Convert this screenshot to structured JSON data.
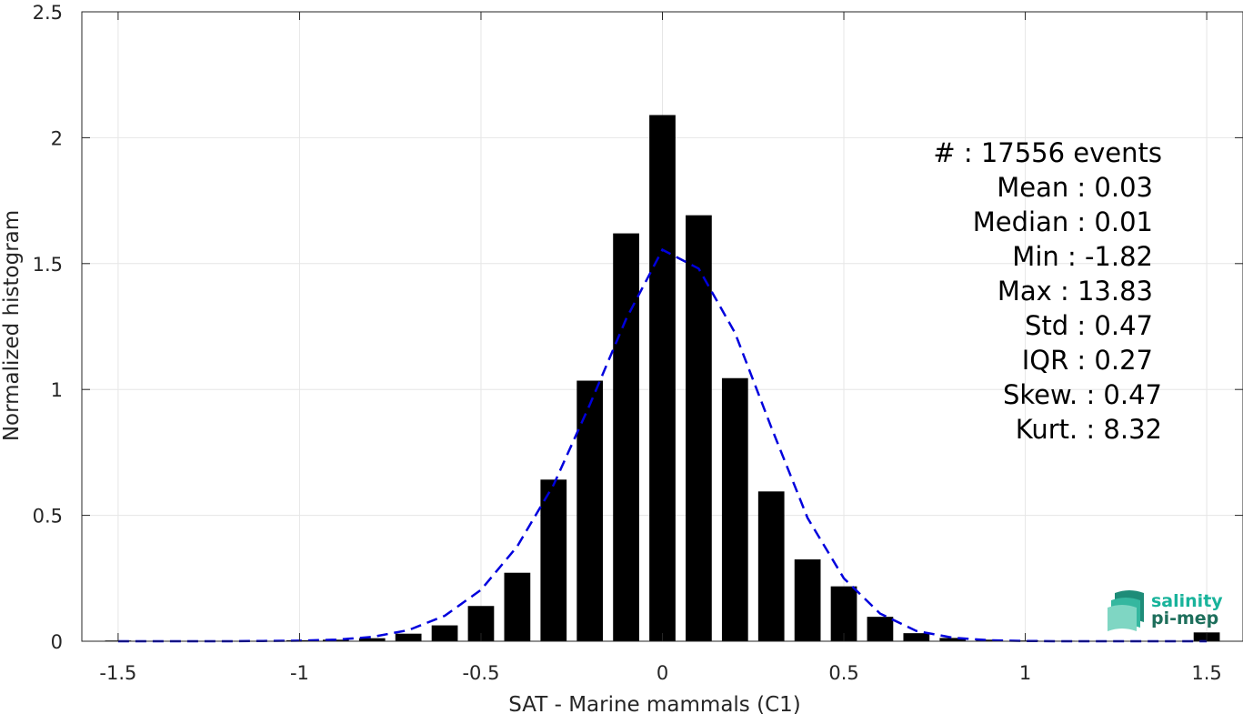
{
  "chart_data": {
    "type": "bar",
    "xlabel": "SAT - Marine mammals (C1)",
    "ylabel": "Normalized histogram",
    "xlim": [
      -1.6,
      1.6
    ],
    "ylim": [
      0,
      2.5
    ],
    "grid": true,
    "xticks": [
      -1.5,
      -1,
      -0.5,
      0,
      0.5,
      1,
      1.5
    ],
    "xtick_labels": [
      "-1.5",
      "-1",
      "-0.5",
      "0",
      "0.5",
      "1",
      "1.5"
    ],
    "yticks": [
      0,
      0.5,
      1,
      1.5,
      2,
      2.5
    ],
    "ytick_labels": [
      "0",
      "0.5",
      "1",
      "1.5",
      "2",
      "2.5"
    ],
    "bin_width": 0.1,
    "bars": {
      "x": [
        -1.5,
        -1.4,
        -1.3,
        -1.2,
        -1.1,
        -1.0,
        -0.9,
        -0.8,
        -0.7,
        -0.6,
        -0.5,
        -0.4,
        -0.3,
        -0.2,
        -0.1,
        0.0,
        0.1,
        0.2,
        0.3,
        0.4,
        0.5,
        0.6,
        0.7,
        0.8,
        0.9,
        1.0,
        1.1,
        1.2,
        1.3,
        1.4,
        1.5
      ],
      "values": [
        0.003,
        0.001,
        0.001,
        0.001,
        0.001,
        0.004,
        0.006,
        0.012,
        0.03,
        0.063,
        0.14,
        0.272,
        0.642,
        1.035,
        1.62,
        2.09,
        1.692,
        1.045,
        0.595,
        0.325,
        0.218,
        0.097,
        0.032,
        0.013,
        0.006,
        0.003,
        0.002,
        0.001,
        0.001,
        0.001,
        0.035
      ]
    },
    "fit_curve": {
      "style": "dashed",
      "color": "#0000dd",
      "x": [
        -1.5,
        -1.4,
        -1.3,
        -1.2,
        -1.1,
        -1.0,
        -0.9,
        -0.8,
        -0.7,
        -0.6,
        -0.5,
        -0.4,
        -0.3,
        -0.2,
        -0.1,
        0.0,
        0.1,
        0.2,
        0.3,
        0.4,
        0.5,
        0.6,
        0.7,
        0.8,
        0.9,
        1.0,
        1.1,
        1.2,
        1.3,
        1.4,
        1.5
      ],
      "y": [
        0.0,
        0.0,
        0.0,
        0.0,
        0.001,
        0.002,
        0.006,
        0.017,
        0.044,
        0.101,
        0.204,
        0.377,
        0.621,
        0.94,
        1.28,
        1.555,
        1.48,
        1.225,
        0.85,
        0.49,
        0.25,
        0.11,
        0.041,
        0.014,
        0.004,
        0.001,
        0.0,
        0.0,
        0.0,
        0.0,
        0.0
      ]
    },
    "bar_color": "#000000"
  },
  "stats": [
    {
      "label": "#  : 17556 events"
    },
    {
      "label": "Mean : 0.03"
    },
    {
      "label": "Median : 0.01"
    },
    {
      "label": "Min : -1.82"
    },
    {
      "label": "Max : 13.83"
    },
    {
      "label": "Std : 0.47"
    },
    {
      "label": "IQR : 0.27"
    },
    {
      "label": "Skew. : 0.47"
    },
    {
      "label": "Kurt. : 8.32"
    }
  ],
  "logo": {
    "line1": "salinity",
    "line2": "pi-mep",
    "color1": "#19b39b",
    "color2": "#1e6f5c"
  }
}
